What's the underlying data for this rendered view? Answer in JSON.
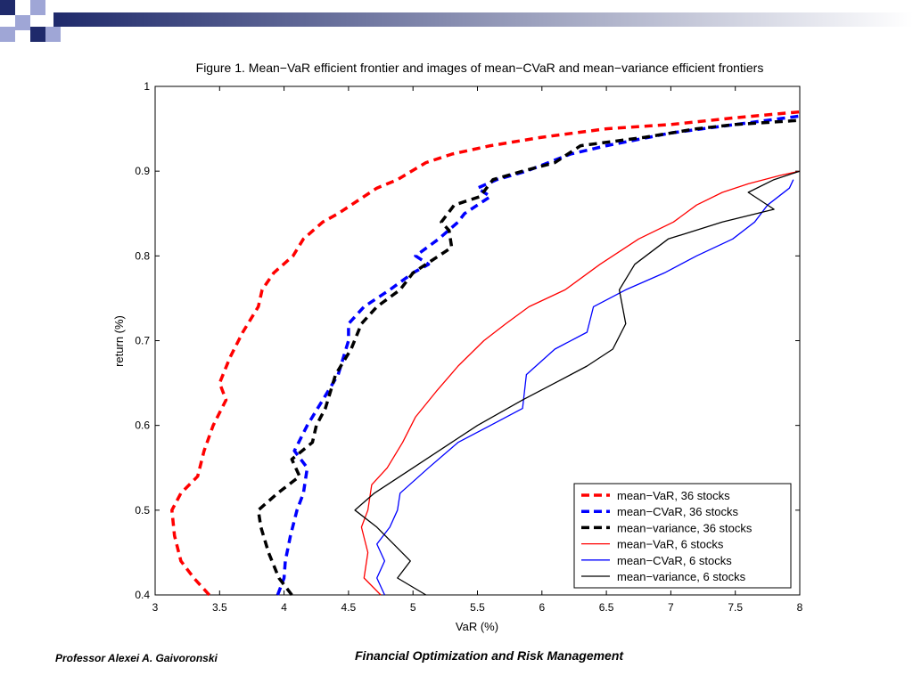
{
  "header": {
    "band_color_start": "#1f2a6b",
    "band_color_end": "#ffffff",
    "square_color_dark": "#1f2a6b",
    "square_color_light": "#9fa6d6"
  },
  "footer": {
    "left_text": "Professor Alexei A. Gaivoronski",
    "right_text": "Financial Optimization and Risk Management"
  },
  "chart_data": {
    "type": "line",
    "title": "Figure 1. Mean−VaR efficient frontier and images of mean−CVaR and mean−variance efficient frontiers",
    "xlabel": "VaR (%)",
    "ylabel": "return (%)",
    "xlim": [
      3,
      8
    ],
    "ylim": [
      0.4,
      1
    ],
    "xticks": [
      3,
      3.5,
      4,
      4.5,
      5,
      5.5,
      6,
      6.5,
      7,
      7.5,
      8
    ],
    "xtick_labels": [
      "3",
      "3.5",
      "4",
      "4.5",
      "5",
      "5.5",
      "6",
      "6.5",
      "7",
      "7.5",
      "8"
    ],
    "yticks": [
      0.4,
      0.5,
      0.6,
      0.7,
      0.8,
      0.9,
      1
    ],
    "ytick_labels": [
      "0.4",
      "0.5",
      "0.6",
      "0.7",
      "0.8",
      "0.9",
      "1"
    ],
    "grid": false,
    "legend_position": "bottom-right",
    "series": [
      {
        "name": "mean−VaR, 36 stocks",
        "color": "#ff0000",
        "dashed": true,
        "points": [
          [
            3.42,
            0.4
          ],
          [
            3.3,
            0.42
          ],
          [
            3.2,
            0.44
          ],
          [
            3.15,
            0.47
          ],
          [
            3.13,
            0.5
          ],
          [
            3.2,
            0.52
          ],
          [
            3.33,
            0.54
          ],
          [
            3.38,
            0.57
          ],
          [
            3.45,
            0.6
          ],
          [
            3.55,
            0.63
          ],
          [
            3.5,
            0.65
          ],
          [
            3.58,
            0.68
          ],
          [
            3.68,
            0.71
          ],
          [
            3.8,
            0.74
          ],
          [
            3.83,
            0.76
          ],
          [
            3.92,
            0.78
          ],
          [
            4.07,
            0.8
          ],
          [
            4.15,
            0.82
          ],
          [
            4.3,
            0.84
          ],
          [
            4.42,
            0.85
          ],
          [
            4.52,
            0.86
          ],
          [
            4.72,
            0.88
          ],
          [
            4.88,
            0.89
          ],
          [
            5.1,
            0.91
          ],
          [
            5.3,
            0.92
          ],
          [
            5.6,
            0.93
          ],
          [
            6.0,
            0.94
          ],
          [
            6.5,
            0.95
          ],
          [
            7.0,
            0.955
          ],
          [
            7.5,
            0.963
          ],
          [
            8.0,
            0.97
          ]
        ]
      },
      {
        "name": "mean−CVaR, 36 stocks",
        "color": "#0000ff",
        "dashed": true,
        "points": [
          [
            3.95,
            0.4
          ],
          [
            4.0,
            0.42
          ],
          [
            4.01,
            0.44
          ],
          [
            4.05,
            0.47
          ],
          [
            4.1,
            0.5
          ],
          [
            4.15,
            0.52
          ],
          [
            4.18,
            0.55
          ],
          [
            4.08,
            0.57
          ],
          [
            4.18,
            0.6
          ],
          [
            4.3,
            0.63
          ],
          [
            4.42,
            0.66
          ],
          [
            4.5,
            0.7
          ],
          [
            4.5,
            0.72
          ],
          [
            4.62,
            0.74
          ],
          [
            4.82,
            0.76
          ],
          [
            5.0,
            0.78
          ],
          [
            5.12,
            0.79
          ],
          [
            5.02,
            0.8
          ],
          [
            5.2,
            0.82
          ],
          [
            5.35,
            0.84
          ],
          [
            5.4,
            0.85
          ],
          [
            5.6,
            0.87
          ],
          [
            5.5,
            0.88
          ],
          [
            5.65,
            0.89
          ],
          [
            5.88,
            0.9
          ],
          [
            6.22,
            0.92
          ],
          [
            6.5,
            0.93
          ],
          [
            7.0,
            0.945
          ],
          [
            7.5,
            0.955
          ],
          [
            8.0,
            0.965
          ]
        ]
      },
      {
        "name": "mean−variance, 36 stocks",
        "color": "#000000",
        "dashed": true,
        "points": [
          [
            4.06,
            0.4
          ],
          [
            3.96,
            0.42
          ],
          [
            3.88,
            0.45
          ],
          [
            3.82,
            0.48
          ],
          [
            3.8,
            0.5
          ],
          [
            3.95,
            0.52
          ],
          [
            4.12,
            0.54
          ],
          [
            4.06,
            0.56
          ],
          [
            4.22,
            0.58
          ],
          [
            4.25,
            0.6
          ],
          [
            4.32,
            0.62
          ],
          [
            4.4,
            0.66
          ],
          [
            4.52,
            0.69
          ],
          [
            4.6,
            0.72
          ],
          [
            4.72,
            0.74
          ],
          [
            4.9,
            0.76
          ],
          [
            5.0,
            0.78
          ],
          [
            5.1,
            0.79
          ],
          [
            5.3,
            0.81
          ],
          [
            5.28,
            0.83
          ],
          [
            5.22,
            0.84
          ],
          [
            5.32,
            0.86
          ],
          [
            5.52,
            0.87
          ],
          [
            5.62,
            0.89
          ],
          [
            5.85,
            0.9
          ],
          [
            6.1,
            0.91
          ],
          [
            6.3,
            0.93
          ],
          [
            6.8,
            0.94
          ],
          [
            7.2,
            0.95
          ],
          [
            7.5,
            0.955
          ],
          [
            8.0,
            0.96
          ]
        ]
      },
      {
        "name": "mean−VaR, 6 stocks",
        "color": "#ff0000",
        "dashed": false,
        "points": [
          [
            4.75,
            0.4
          ],
          [
            4.62,
            0.42
          ],
          [
            4.65,
            0.45
          ],
          [
            4.6,
            0.48
          ],
          [
            4.65,
            0.5
          ],
          [
            4.68,
            0.53
          ],
          [
            4.8,
            0.55
          ],
          [
            4.92,
            0.58
          ],
          [
            5.02,
            0.61
          ],
          [
            5.18,
            0.64
          ],
          [
            5.35,
            0.67
          ],
          [
            5.55,
            0.7
          ],
          [
            5.72,
            0.72
          ],
          [
            5.9,
            0.74
          ],
          [
            6.18,
            0.76
          ],
          [
            6.45,
            0.79
          ],
          [
            6.75,
            0.82
          ],
          [
            7.02,
            0.84
          ],
          [
            7.2,
            0.86
          ],
          [
            7.4,
            0.875
          ],
          [
            7.6,
            0.885
          ],
          [
            7.85,
            0.895
          ],
          [
            8.0,
            0.9
          ]
        ]
      },
      {
        "name": "mean−CVaR, 6 stocks",
        "color": "#0000ff",
        "dashed": false,
        "points": [
          [
            4.78,
            0.4
          ],
          [
            4.72,
            0.42
          ],
          [
            4.78,
            0.44
          ],
          [
            4.72,
            0.46
          ],
          [
            4.82,
            0.48
          ],
          [
            4.88,
            0.5
          ],
          [
            4.9,
            0.52
          ],
          [
            5.12,
            0.55
          ],
          [
            5.35,
            0.58
          ],
          [
            5.6,
            0.6
          ],
          [
            5.85,
            0.62
          ],
          [
            5.88,
            0.66
          ],
          [
            6.1,
            0.69
          ],
          [
            6.35,
            0.71
          ],
          [
            6.4,
            0.74
          ],
          [
            6.65,
            0.76
          ],
          [
            6.95,
            0.78
          ],
          [
            7.2,
            0.8
          ],
          [
            7.48,
            0.82
          ],
          [
            7.65,
            0.84
          ],
          [
            7.75,
            0.86
          ],
          [
            7.92,
            0.88
          ],
          [
            7.95,
            0.89
          ]
        ]
      },
      {
        "name": "mean−variance, 6 stocks",
        "color": "#000000",
        "dashed": false,
        "points": [
          [
            5.1,
            0.4
          ],
          [
            4.88,
            0.42
          ],
          [
            4.98,
            0.44
          ],
          [
            4.85,
            0.46
          ],
          [
            4.72,
            0.48
          ],
          [
            4.55,
            0.5
          ],
          [
            4.7,
            0.52
          ],
          [
            5.0,
            0.55
          ],
          [
            5.3,
            0.58
          ],
          [
            5.5,
            0.6
          ],
          [
            5.85,
            0.63
          ],
          [
            6.1,
            0.65
          ],
          [
            6.35,
            0.67
          ],
          [
            6.55,
            0.69
          ],
          [
            6.65,
            0.72
          ],
          [
            6.6,
            0.76
          ],
          [
            6.72,
            0.79
          ],
          [
            6.98,
            0.82
          ],
          [
            7.4,
            0.84
          ],
          [
            7.8,
            0.855
          ],
          [
            7.6,
            0.875
          ],
          [
            7.8,
            0.89
          ],
          [
            8.0,
            0.9
          ]
        ]
      }
    ]
  }
}
